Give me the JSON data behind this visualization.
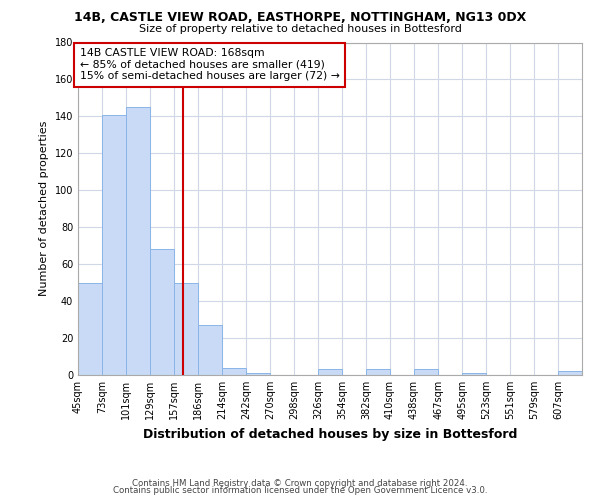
{
  "title_line1": "14B, CASTLE VIEW ROAD, EASTHORPE, NOTTINGHAM, NG13 0DX",
  "title_line2": "Size of property relative to detached houses in Bottesford",
  "xlabel": "Distribution of detached houses by size in Bottesford",
  "ylabel": "Number of detached properties",
  "bar_labels": [
    "45sqm",
    "73sqm",
    "101sqm",
    "129sqm",
    "157sqm",
    "186sqm",
    "214sqm",
    "242sqm",
    "270sqm",
    "298sqm",
    "326sqm",
    "354sqm",
    "382sqm",
    "410sqm",
    "438sqm",
    "467sqm",
    "495sqm",
    "523sqm",
    "551sqm",
    "579sqm",
    "607sqm"
  ],
  "bar_values": [
    50,
    141,
    145,
    68,
    50,
    27,
    4,
    1,
    0,
    0,
    3,
    0,
    3,
    0,
    3,
    0,
    1,
    0,
    0,
    0,
    2
  ],
  "bar_color": "#c8daf5",
  "bar_edge_color": "#8ab4e8",
  "property_line_x": 168,
  "bin_edges": [
    45,
    73,
    101,
    129,
    157,
    186,
    214,
    242,
    270,
    298,
    326,
    354,
    382,
    410,
    438,
    467,
    495,
    523,
    551,
    579,
    607,
    635
  ],
  "annotation_text": "14B CASTLE VIEW ROAD: 168sqm\n← 85% of detached houses are smaller (419)\n15% of semi-detached houses are larger (72) →",
  "annotation_box_color": "#ffffff",
  "annotation_border_color": "#cc0000",
  "red_line_color": "#cc0000",
  "ylim": [
    0,
    180
  ],
  "yticks": [
    0,
    20,
    40,
    60,
    80,
    100,
    120,
    140,
    160,
    180
  ],
  "footer_line1": "Contains HM Land Registry data © Crown copyright and database right 2024.",
  "footer_line2": "Contains public sector information licensed under the Open Government Licence v3.0.",
  "bg_color": "#ffffff",
  "grid_color": "#d0d8e8"
}
